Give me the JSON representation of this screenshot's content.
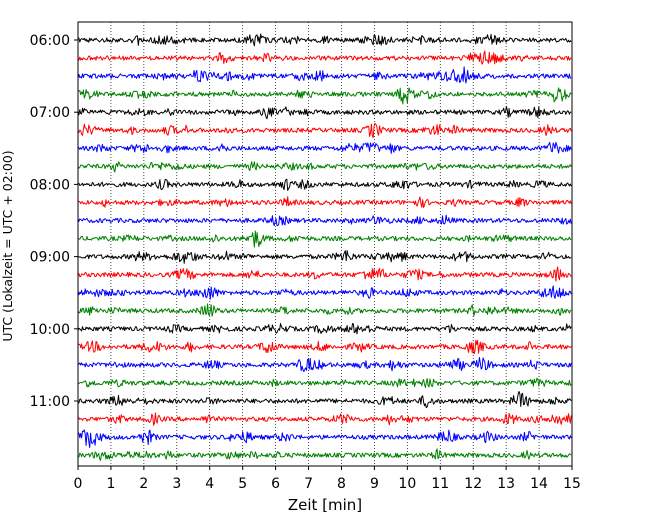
{
  "chart_data": {
    "type": "line",
    "title": "",
    "xlabel": "Zeit  [min]",
    "ylabel": "UTC (Lokalzeit = UTC + 02:00)",
    "xlim": [
      0,
      15
    ],
    "x_ticks": [
      "0",
      "1",
      "2",
      "3",
      "4",
      "5",
      "6",
      "7",
      "8",
      "9",
      "10",
      "11",
      "12",
      "13",
      "14",
      "15"
    ],
    "y_ticks": [
      "06:00",
      "07:00",
      "08:00",
      "09:00",
      "10:00",
      "11:00"
    ],
    "grid": "vertical dotted",
    "trace_interval_minutes": 15,
    "trace_count": 24,
    "trace_colors": [
      "#000000",
      "#ff0000",
      "#0000ff",
      "#008000"
    ],
    "traces": [
      {
        "start": "06:00",
        "color": "#000000"
      },
      {
        "start": "06:15",
        "color": "#ff0000"
      },
      {
        "start": "06:30",
        "color": "#0000ff"
      },
      {
        "start": "06:45",
        "color": "#008000"
      },
      {
        "start": "07:00",
        "color": "#000000"
      },
      {
        "start": "07:15",
        "color": "#ff0000"
      },
      {
        "start": "07:30",
        "color": "#0000ff"
      },
      {
        "start": "07:45",
        "color": "#008000"
      },
      {
        "start": "08:00",
        "color": "#000000"
      },
      {
        "start": "08:15",
        "color": "#ff0000"
      },
      {
        "start": "08:30",
        "color": "#0000ff"
      },
      {
        "start": "08:45",
        "color": "#008000"
      },
      {
        "start": "09:00",
        "color": "#000000"
      },
      {
        "start": "09:15",
        "color": "#ff0000"
      },
      {
        "start": "09:30",
        "color": "#0000ff"
      },
      {
        "start": "09:45",
        "color": "#008000"
      },
      {
        "start": "10:00",
        "color": "#000000"
      },
      {
        "start": "10:15",
        "color": "#ff0000"
      },
      {
        "start": "10:30",
        "color": "#0000ff"
      },
      {
        "start": "10:45",
        "color": "#008000"
      },
      {
        "start": "11:00",
        "color": "#000000"
      },
      {
        "start": "11:15",
        "color": "#ff0000"
      },
      {
        "start": "11:30",
        "color": "#0000ff"
      },
      {
        "start": "11:45",
        "color": "#008000"
      }
    ]
  }
}
